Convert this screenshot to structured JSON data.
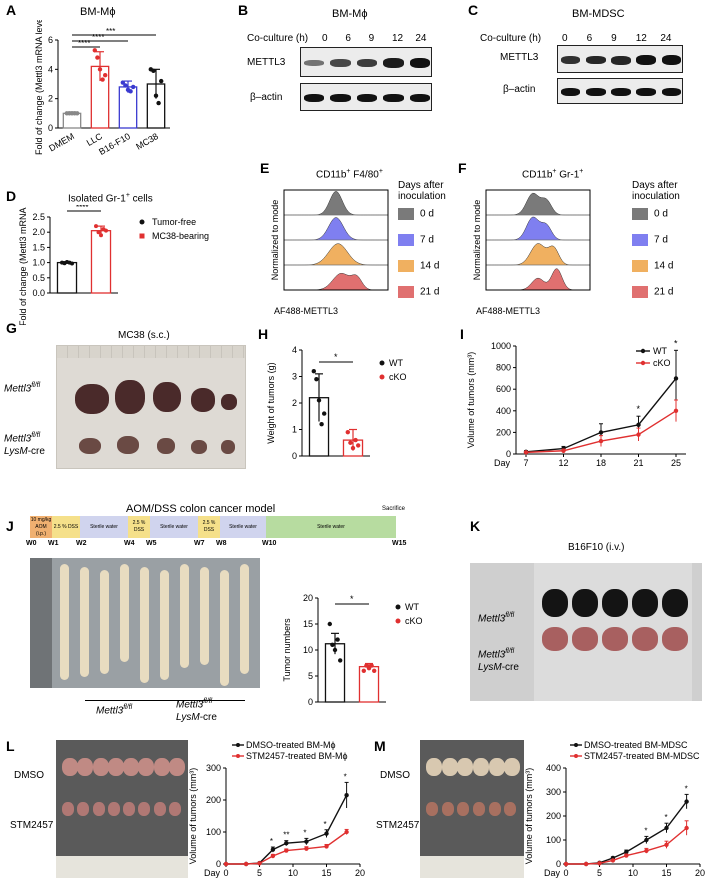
{
  "panels": {
    "A": {
      "letter": "A",
      "title": "BM-Mϕ",
      "ylabel": "Fold of change (Mettl3 mRNA level)",
      "ticks": [
        "0",
        "2",
        "4",
        "6"
      ],
      "sig": [
        "****",
        "****",
        "***"
      ],
      "chart_data": {
        "type": "bar",
        "categories": [
          "DMEM",
          "LLC",
          "B16-F10",
          "MC38"
        ],
        "values": [
          1.0,
          4.2,
          2.8,
          3.0
        ],
        "errors": [
          0.1,
          1.0,
          0.4,
          1.0
        ],
        "ylim": [
          0,
          6
        ],
        "points": [
          [
            1,
            1,
            1,
            1,
            1
          ],
          [
            5.3,
            4.8,
            4.0,
            3.3,
            3.6
          ],
          [
            3.1,
            2.9,
            2.6,
            2.5,
            2.8
          ],
          [
            4.0,
            3.9,
            2.2,
            1.7,
            3.2
          ]
        ],
        "colors": [
          "#888888",
          "#e03030",
          "#3a3ad0",
          "#111111"
        ]
      }
    },
    "B": {
      "letter": "B",
      "title": "BM-Mϕ",
      "coculture": "Co-culture (h)",
      "times": [
        "0",
        "6",
        "9",
        "12",
        "24"
      ],
      "bands": [
        "METTL3",
        "β–actin"
      ]
    },
    "C": {
      "letter": "C",
      "title": "BM-MDSC",
      "coculture": "Co-culture (h)",
      "times": [
        "0",
        "6",
        "9",
        "12",
        "24"
      ],
      "bands": [
        "METTL3",
        "β–actin"
      ]
    },
    "D": {
      "letter": "D",
      "title": "Isolated Gr-1",
      "title_sup": "+",
      "title_tail": " cells",
      "ylabel": "Fold of change (Mettl3 mRNA level)",
      "ticks": [
        "0.0",
        "0.5",
        "1.0",
        "1.5",
        "2.0",
        "2.5"
      ],
      "sig": "****",
      "legend": [
        "Tumor-free",
        "MC38-bearing"
      ],
      "chart_data": {
        "type": "bar",
        "categories": [
          "Tumor-free",
          "MC38-bearing"
        ],
        "values": [
          1.0,
          2.05
        ],
        "errors": [
          0.03,
          0.15
        ],
        "ylim": [
          0,
          2.5
        ],
        "colors": [
          "#111111",
          "#e03030"
        ]
      }
    },
    "E": {
      "letter": "E",
      "title": "CD11b",
      "title_sup": "+",
      "title_mid": " F4/80",
      "title_sup2": "+",
      "ylabel": "Normalized to mode",
      "xlabel": "AF488-METTL3"
    },
    "F": {
      "letter": "F",
      "title": "CD11b",
      "title_sup": "+",
      "title_mid": " Gr-1",
      "title_sup2": "+",
      "ylabel": "Normalized to mode",
      "xlabel": "AF488-METTL3"
    },
    "EF_legend": {
      "title1": "Days after",
      "title2": "inoculation",
      "items": [
        "0 d",
        "7 d",
        "14 d",
        "21 d"
      ],
      "colors": [
        "#7a7a7a",
        "#7f7ff0",
        "#f0b060",
        "#e07070"
      ]
    },
    "G": {
      "letter": "G",
      "title": "MC38 (s.c.)",
      "row1": "Mettl3",
      "row1_sup": "fl/fl",
      "row2a": "Mettl3",
      "row2a_sup": "fl/fl",
      "row2b": "LysM",
      "row2b_tail": "-cre"
    },
    "H": {
      "letter": "H",
      "ylabel": "Weight of tumors (g)",
      "ticks": [
        "0",
        "1",
        "2",
        "3",
        "4"
      ],
      "sig": "*",
      "legend": [
        "WT",
        "cKO"
      ],
      "chart_data": {
        "type": "bar",
        "categories": [
          "WT",
          "cKO"
        ],
        "values": [
          2.2,
          0.6
        ],
        "errors": [
          0.9,
          0.4
        ],
        "ylim": [
          0,
          4
        ],
        "points": [
          [
            3.2,
            2.9,
            2.1,
            1.2,
            1.6
          ],
          [
            0.9,
            0.5,
            0.3,
            0.6,
            0.4
          ]
        ],
        "colors": [
          "#111111",
          "#e03030"
        ]
      }
    },
    "I": {
      "letter": "I",
      "ylabel": "Volume of tumors (mm³)",
      "ticks": [
        "0",
        "200",
        "400",
        "600",
        "800",
        "1000"
      ],
      "xprefix": "Day",
      "sig": [
        "*",
        "*"
      ],
      "legend": [
        "WT",
        "cKO"
      ],
      "chart_data": {
        "type": "line",
        "x": [
          7,
          12,
          18,
          21,
          25
        ],
        "xticks": [
          "7",
          "12",
          "18",
          "21",
          "25"
        ],
        "ylim": [
          0,
          1000
        ],
        "series": [
          {
            "name": "WT",
            "values": [
              20,
              50,
              200,
              270,
              700
            ],
            "errors": [
              10,
              20,
              80,
              80,
              260
            ],
            "color": "#111111"
          },
          {
            "name": "cKO",
            "values": [
              15,
              30,
              120,
              180,
              400
            ],
            "errors": [
              8,
              15,
              50,
              60,
              100
            ],
            "color": "#e03030"
          }
        ]
      }
    },
    "J": {
      "letter": "J",
      "model_title": "AOM/DSS colon cancer model",
      "sacrifice": "Sacrifice",
      "timeline": [
        {
          "label": "10 mg/kg AOM (i.p.)",
          "color": "#f0b070"
        },
        {
          "label": "2.5 % DSS",
          "color": "#f5e08a"
        },
        {
          "label": "Sterile water",
          "color": "#d0d4ee"
        },
        {
          "label": "2.5 % DSS",
          "color": "#f5e08a"
        },
        {
          "label": "Sterile water",
          "color": "#d0d4ee"
        },
        {
          "label": "2.5 % DSS",
          "color": "#f5e08a"
        },
        {
          "label": "Sterile water",
          "color": "#d0d4ee"
        },
        {
          "label": "Sterile water",
          "color": "#b7dca0"
        }
      ],
      "weeks": [
        "W0",
        "W1",
        "W2",
        "W4",
        "W5",
        "W7",
        "W8",
        "W10",
        "W15"
      ],
      "grp1": "Mettl3",
      "grp1_sup": "fl/fl",
      "grp2a": "Mettl3",
      "grp2a_sup": "fl/fl",
      "grp2b": "LysM",
      "grp2b_tail": "-cre"
    },
    "J2": {
      "ylabel": "Tumor numbers",
      "ticks": [
        "0",
        "5",
        "10",
        "15",
        "20"
      ],
      "sig": "*",
      "legend": [
        "WT",
        "cKO"
      ],
      "chart_data": {
        "type": "bar",
        "categories": [
          "WT",
          "cKO"
        ],
        "values": [
          11.2,
          6.8
        ],
        "errors": [
          2.0,
          0.6
        ],
        "ylim": [
          0,
          20
        ],
        "points": [
          [
            15,
            11,
            10,
            12,
            8
          ],
          [
            6,
            7,
            6.5,
            7,
            6
          ]
        ],
        "colors": [
          "#111111",
          "#e03030"
        ]
      }
    },
    "K": {
      "letter": "K",
      "title": "B16F10 (i.v.)",
      "row1": "Mettl3",
      "row1_sup": "fl/fl",
      "row2a": "Mettl3",
      "row2a_sup": "fl/fl",
      "row2b": "LysM",
      "row2b_tail": "-cre"
    },
    "L": {
      "letter": "L",
      "row1": "DMSO",
      "row2": "STM2457",
      "ylabel": "Volume of tumors (mm³)",
      "ticks": [
        "0",
        "100",
        "200",
        "300"
      ],
      "xprefix": "Day",
      "sig": [
        "*",
        "**",
        "*",
        "*",
        "*"
      ],
      "legend": [
        "DMSO-treated BM-Mϕ",
        "STM2457-treated BM-Mϕ"
      ],
      "chart_data": {
        "type": "line",
        "x": [
          0,
          3,
          5,
          7,
          9,
          12,
          15,
          18
        ],
        "xticks": [
          "0",
          "5",
          "10",
          "15",
          "20"
        ],
        "ylim": [
          0,
          300
        ],
        "series": [
          {
            "name": "DMSO-treated BM-Mϕ",
            "values": [
              0,
              0,
              3,
              45,
              65,
              70,
              95,
              215
            ],
            "errors": [
              0,
              0,
              2,
              8,
              8,
              10,
              12,
              40
            ],
            "color": "#111111"
          },
          {
            "name": "STM2457-treated BM-Mϕ",
            "values": [
              0,
              0,
              2,
              25,
              42,
              48,
              55,
              100
            ],
            "errors": [
              0,
              0,
              1,
              5,
              5,
              6,
              6,
              8
            ],
            "color": "#e03030"
          }
        ]
      }
    },
    "M": {
      "letter": "M",
      "row1": "DMSO",
      "row2": "STM2457",
      "ylabel": "Volume of tumors (mm³)",
      "ticks": [
        "0",
        "100",
        "200",
        "300",
        "400"
      ],
      "xprefix": "Day",
      "sig": [
        "*",
        "*",
        "*"
      ],
      "legend": [
        "DMSO-treated BM-MDSC",
        "STM2457-treated BM-MDSC"
      ],
      "chart_data": {
        "type": "line",
        "x": [
          0,
          3,
          5,
          7,
          9,
          12,
          15,
          18
        ],
        "xticks": [
          "0",
          "5",
          "10",
          "15",
          "20"
        ],
        "ylim": [
          0,
          400
        ],
        "series": [
          {
            "name": "DMSO-treated BM-MDSC",
            "values": [
              0,
              0,
              5,
              25,
              50,
              100,
              150,
              260
            ],
            "errors": [
              0,
              0,
              2,
              5,
              8,
              15,
              20,
              30
            ],
            "color": "#111111"
          },
          {
            "name": "STM2457-treated BM-MDSC",
            "values": [
              0,
              0,
              3,
              15,
              35,
              55,
              80,
              150
            ],
            "errors": [
              0,
              0,
              1,
              4,
              6,
              10,
              15,
              30
            ],
            "color": "#e03030"
          }
        ]
      }
    }
  }
}
